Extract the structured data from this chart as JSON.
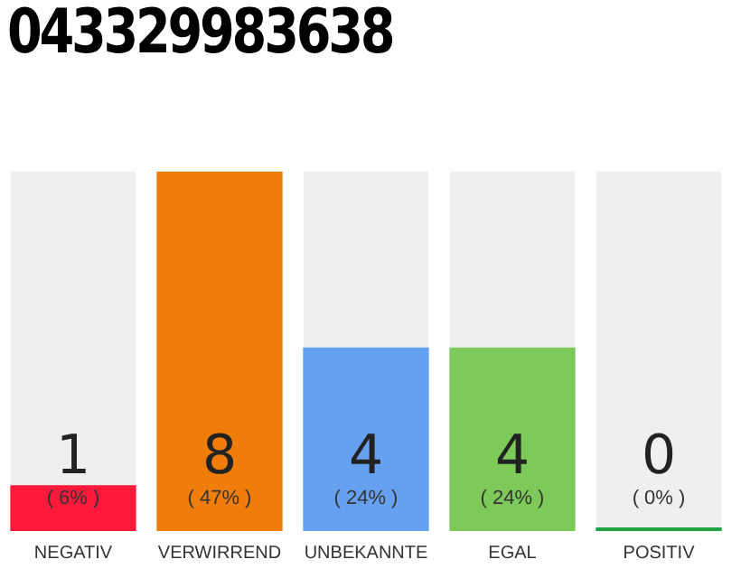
{
  "chart_data": {
    "type": "bar",
    "title": "043329983638",
    "categories": [
      "NEGATIV",
      "VERWIRREND",
      "UNBEKANNTE",
      "EGAL",
      "POSITIV"
    ],
    "values": [
      6,
      47,
      24,
      24,
      0
    ],
    "colors": [
      "#ff1a3c",
      "#f07d0a",
      "#66a0f0",
      "#7dca5a",
      "#1aa340"
    ],
    "value_labels": [
      "( 6% )",
      "( 47% )",
      "( 24% )",
      "( 24% )",
      "( 0% )"
    ],
    "annotations": [
      "1",
      "8",
      "4",
      "4",
      "0"
    ],
    "ylim": [
      0,
      47
    ],
    "tick_labels": "x",
    "grid": false,
    "legend": false
  }
}
